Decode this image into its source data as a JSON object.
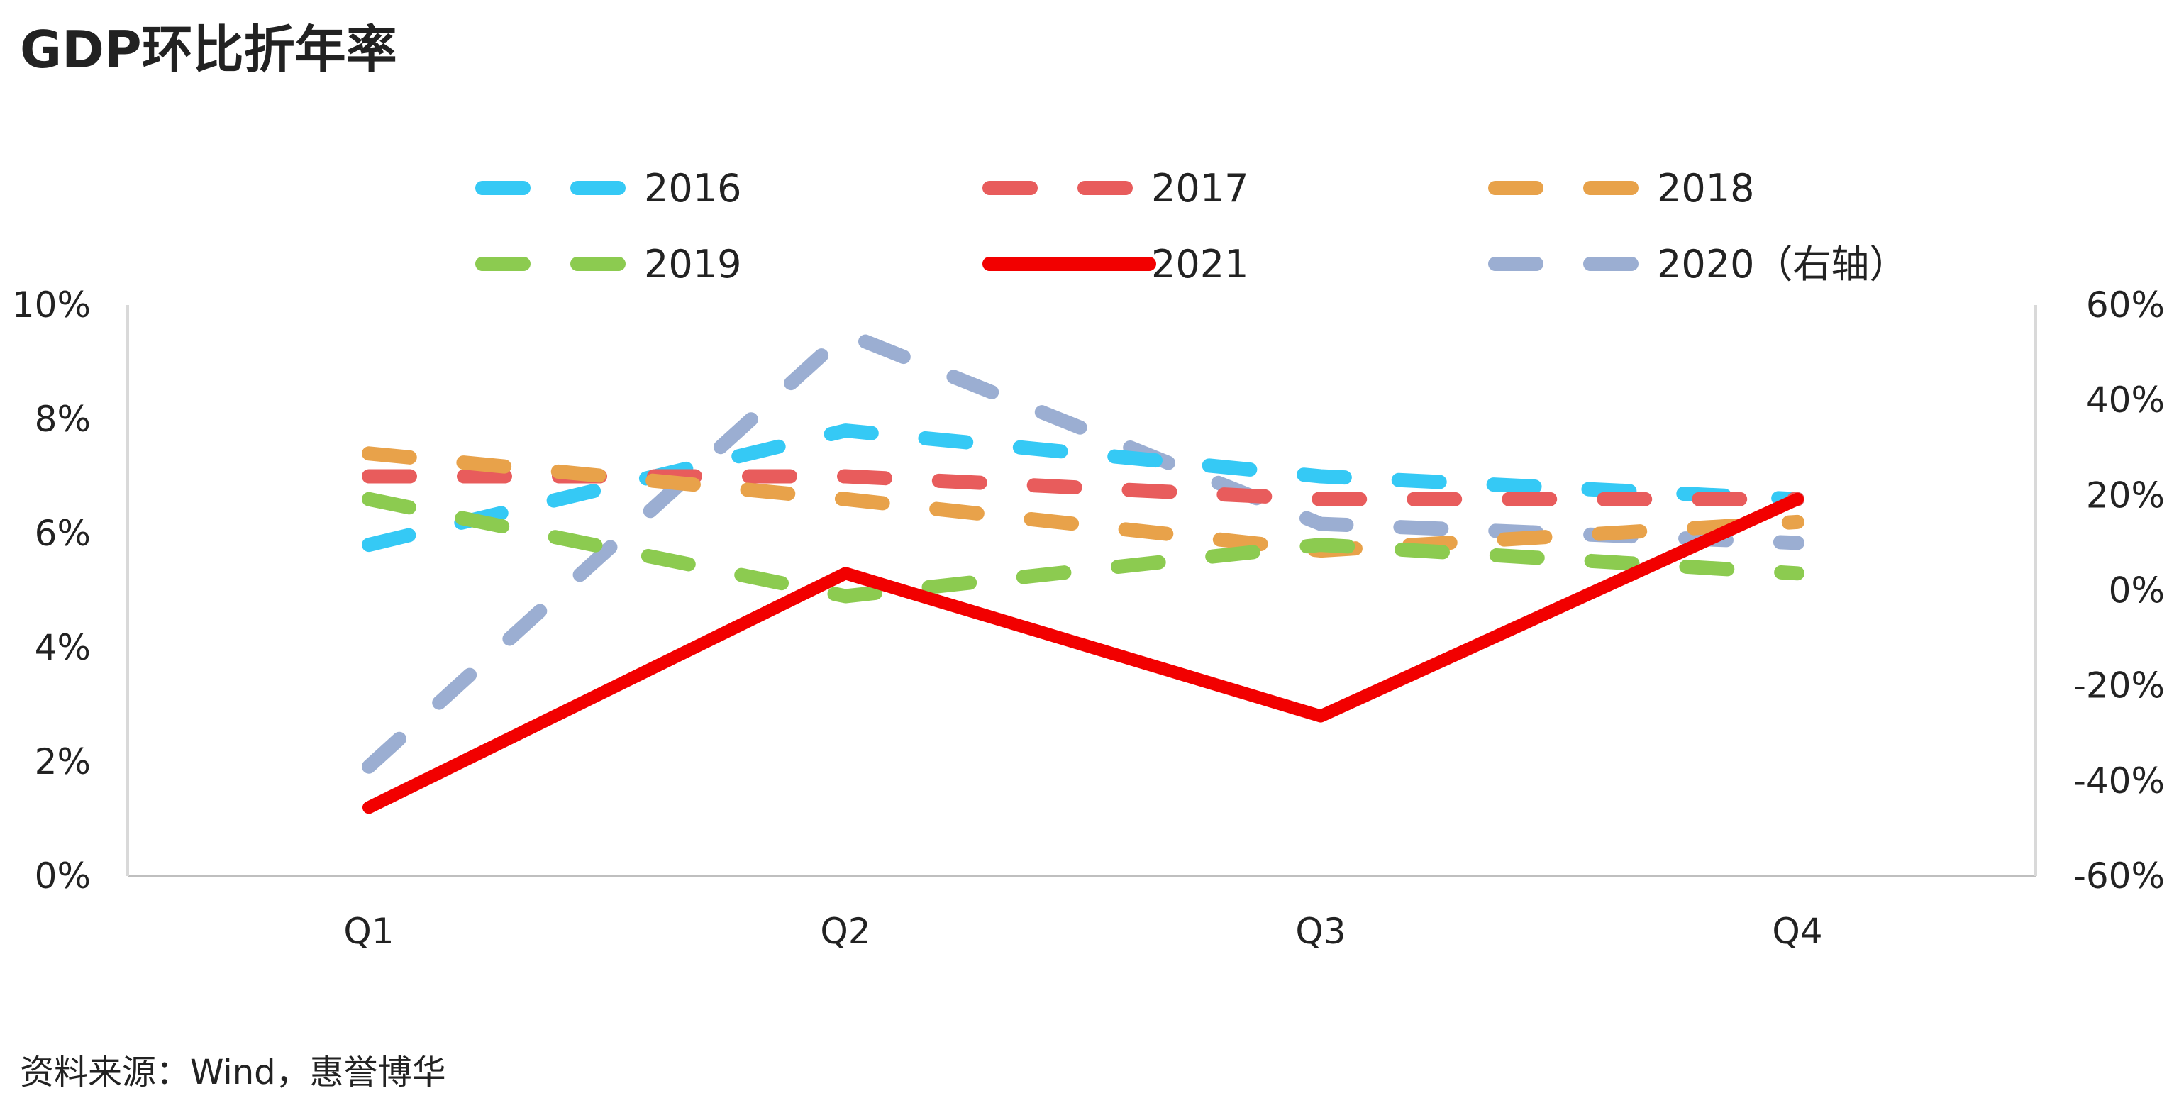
{
  "title": "GDP环比折年率",
  "source": "资料来源：Wind，惠誉博华",
  "chart_data": {
    "type": "line",
    "categories": [
      "Q1",
      "Q2",
      "Q3",
      "Q4"
    ],
    "y_left": {
      "ylim": [
        0,
        10
      ],
      "ticks": [
        "0%",
        "2%",
        "4%",
        "6%",
        "8%",
        "10%"
      ]
    },
    "y_right": {
      "ylim": [
        -60,
        60
      ],
      "ticks": [
        "-60%",
        "-40%",
        "-20%",
        "0%",
        "20%",
        "40%",
        "60%"
      ]
    },
    "grid": false,
    "legend_position": "top",
    "series": [
      {
        "name": "2016",
        "values": [
          5.8,
          7.8,
          7.0,
          6.6
        ],
        "axis": "left",
        "color": "#35C9F5",
        "dash": true
      },
      {
        "name": "2017",
        "values": [
          7.0,
          7.0,
          6.6,
          6.6
        ],
        "axis": "left",
        "color": "#E85C5C",
        "dash": true
      },
      {
        "name": "2018",
        "values": [
          7.4,
          6.6,
          5.7,
          6.2
        ],
        "axis": "left",
        "color": "#E8A24A",
        "dash": true
      },
      {
        "name": "2019",
        "values": [
          6.6,
          4.9,
          5.8,
          5.3
        ],
        "axis": "left",
        "color": "#8CCB50",
        "dash": true
      },
      {
        "name": "2021",
        "values": [
          1.2,
          5.3,
          2.8,
          6.6
        ],
        "axis": "left",
        "color": "#F20000",
        "dash": false
      },
      {
        "name": "2020（右轴）",
        "values": [
          -37,
          54,
          14,
          10
        ],
        "axis": "right",
        "color": "#9BAED2",
        "dash": true
      }
    ]
  }
}
